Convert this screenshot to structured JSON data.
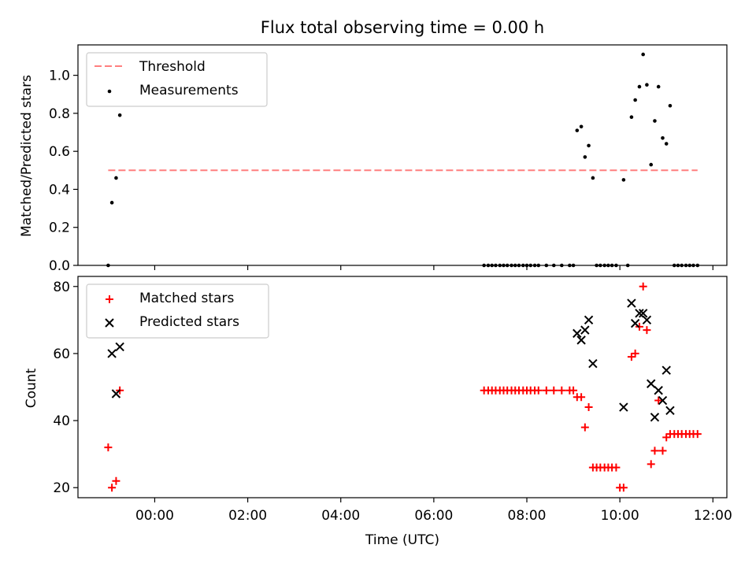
{
  "figure": {
    "title": "Flux total observing time = 0.00 h",
    "xlabel": "Time (UTC)",
    "x_tick_labels": [
      "00:00",
      "02:00",
      "04:00",
      "06:00",
      "08:00",
      "10:00",
      "12:00"
    ]
  },
  "chart_data": [
    {
      "type": "scatter",
      "panel": "top",
      "ylabel": "Matched/Predicted stars",
      "x_unit": "hours UTC (negative = before 00:00)",
      "xlim": [
        -1.65,
        12.3
      ],
      "ylim": [
        0.0,
        1.16
      ],
      "y_ticks": [
        0.0,
        0.2,
        0.4,
        0.6,
        0.8,
        1.0
      ],
      "y_tick_labels": [
        "0.0",
        "0.2",
        "0.4",
        "0.6",
        "0.8",
        "1.0"
      ],
      "legend_position": "top-left",
      "threshold": {
        "name": "Threshold",
        "value": 0.5,
        "x_range": [
          -1.0,
          11.67
        ],
        "color": "#ff7f7f",
        "style": "dashed"
      },
      "series": [
        {
          "name": "Measurements",
          "marker": "dot",
          "color": "#000000",
          "points": [
            [
              -1.0,
              0.0
            ],
            [
              -0.92,
              0.33
            ],
            [
              -0.83,
              0.46
            ],
            [
              -0.75,
              0.79
            ],
            [
              7.08,
              0.0
            ],
            [
              7.17,
              0.0
            ],
            [
              7.25,
              0.0
            ],
            [
              7.33,
              0.0
            ],
            [
              7.42,
              0.0
            ],
            [
              7.5,
              0.0
            ],
            [
              7.58,
              0.0
            ],
            [
              7.67,
              0.0
            ],
            [
              7.75,
              0.0
            ],
            [
              7.83,
              0.0
            ],
            [
              7.92,
              0.0
            ],
            [
              8.0,
              0.0
            ],
            [
              8.08,
              0.0
            ],
            [
              8.17,
              0.0
            ],
            [
              8.25,
              0.0
            ],
            [
              8.42,
              0.0
            ],
            [
              8.58,
              0.0
            ],
            [
              8.75,
              0.0
            ],
            [
              8.92,
              0.0
            ],
            [
              9.0,
              0.0
            ],
            [
              9.08,
              0.71
            ],
            [
              9.17,
              0.73
            ],
            [
              9.25,
              0.57
            ],
            [
              9.33,
              0.63
            ],
            [
              9.42,
              0.46
            ],
            [
              9.5,
              0.0
            ],
            [
              9.58,
              0.0
            ],
            [
              9.67,
              0.0
            ],
            [
              9.75,
              0.0
            ],
            [
              9.83,
              0.0
            ],
            [
              9.92,
              0.0
            ],
            [
              10.08,
              0.45
            ],
            [
              10.17,
              0.0
            ],
            [
              10.25,
              0.78
            ],
            [
              10.33,
              0.87
            ],
            [
              10.42,
              0.94
            ],
            [
              10.5,
              1.11
            ],
            [
              10.58,
              0.95
            ],
            [
              10.67,
              0.53
            ],
            [
              10.75,
              0.76
            ],
            [
              10.83,
              0.94
            ],
            [
              10.92,
              0.67
            ],
            [
              11.0,
              0.64
            ],
            [
              11.08,
              0.84
            ],
            [
              11.17,
              0.0
            ],
            [
              11.25,
              0.0
            ],
            [
              11.33,
              0.0
            ],
            [
              11.42,
              0.0
            ],
            [
              11.5,
              0.0
            ],
            [
              11.58,
              0.0
            ],
            [
              11.67,
              0.0
            ]
          ]
        }
      ]
    },
    {
      "type": "scatter",
      "panel": "bottom",
      "ylabel": "Count",
      "x_unit": "hours UTC (negative = before 00:00)",
      "xlim": [
        -1.65,
        12.3
      ],
      "ylim": [
        17,
        83
      ],
      "y_ticks": [
        20,
        40,
        60,
        80
      ],
      "y_tick_labels": [
        "20",
        "40",
        "60",
        "80"
      ],
      "legend_position": "top-left",
      "series": [
        {
          "name": "Matched stars",
          "marker": "plus",
          "color": "#ff0000",
          "points": [
            [
              -1.0,
              32
            ],
            [
              -0.92,
              20
            ],
            [
              -0.83,
              22
            ],
            [
              -0.75,
              49
            ],
            [
              7.08,
              49
            ],
            [
              7.17,
              49
            ],
            [
              7.25,
              49
            ],
            [
              7.33,
              49
            ],
            [
              7.42,
              49
            ],
            [
              7.5,
              49
            ],
            [
              7.58,
              49
            ],
            [
              7.67,
              49
            ],
            [
              7.75,
              49
            ],
            [
              7.83,
              49
            ],
            [
              7.92,
              49
            ],
            [
              8.0,
              49
            ],
            [
              8.08,
              49
            ],
            [
              8.17,
              49
            ],
            [
              8.25,
              49
            ],
            [
              8.42,
              49
            ],
            [
              8.58,
              49
            ],
            [
              8.75,
              49
            ],
            [
              8.92,
              49
            ],
            [
              9.0,
              49
            ],
            [
              9.08,
              47
            ],
            [
              9.17,
              47
            ],
            [
              9.25,
              38
            ],
            [
              9.33,
              44
            ],
            [
              9.42,
              26
            ],
            [
              9.5,
              26
            ],
            [
              9.58,
              26
            ],
            [
              9.67,
              26
            ],
            [
              9.75,
              26
            ],
            [
              9.83,
              26
            ],
            [
              9.92,
              26
            ],
            [
              10.0,
              20
            ],
            [
              10.08,
              20
            ],
            [
              10.25,
              59
            ],
            [
              10.33,
              60
            ],
            [
              10.42,
              68
            ],
            [
              10.5,
              80
            ],
            [
              10.58,
              67
            ],
            [
              10.67,
              27
            ],
            [
              10.75,
              31
            ],
            [
              10.83,
              46
            ],
            [
              10.92,
              31
            ],
            [
              11.0,
              35
            ],
            [
              11.08,
              36
            ],
            [
              11.17,
              36
            ],
            [
              11.25,
              36
            ],
            [
              11.33,
              36
            ],
            [
              11.42,
              36
            ],
            [
              11.5,
              36
            ],
            [
              11.58,
              36
            ],
            [
              11.67,
              36
            ]
          ]
        },
        {
          "name": "Predicted stars",
          "marker": "x",
          "color": "#000000",
          "points": [
            [
              -0.92,
              60
            ],
            [
              -0.83,
              48
            ],
            [
              -0.75,
              62
            ],
            [
              9.08,
              66
            ],
            [
              9.17,
              64
            ],
            [
              9.25,
              67
            ],
            [
              9.33,
              70
            ],
            [
              9.42,
              57
            ],
            [
              10.08,
              44
            ],
            [
              10.25,
              75
            ],
            [
              10.33,
              69
            ],
            [
              10.42,
              72
            ],
            [
              10.5,
              72
            ],
            [
              10.58,
              70
            ],
            [
              10.67,
              51
            ],
            [
              10.75,
              41
            ],
            [
              10.83,
              49
            ],
            [
              10.92,
              46
            ],
            [
              11.0,
              55
            ],
            [
              11.08,
              43
            ]
          ]
        }
      ]
    }
  ]
}
